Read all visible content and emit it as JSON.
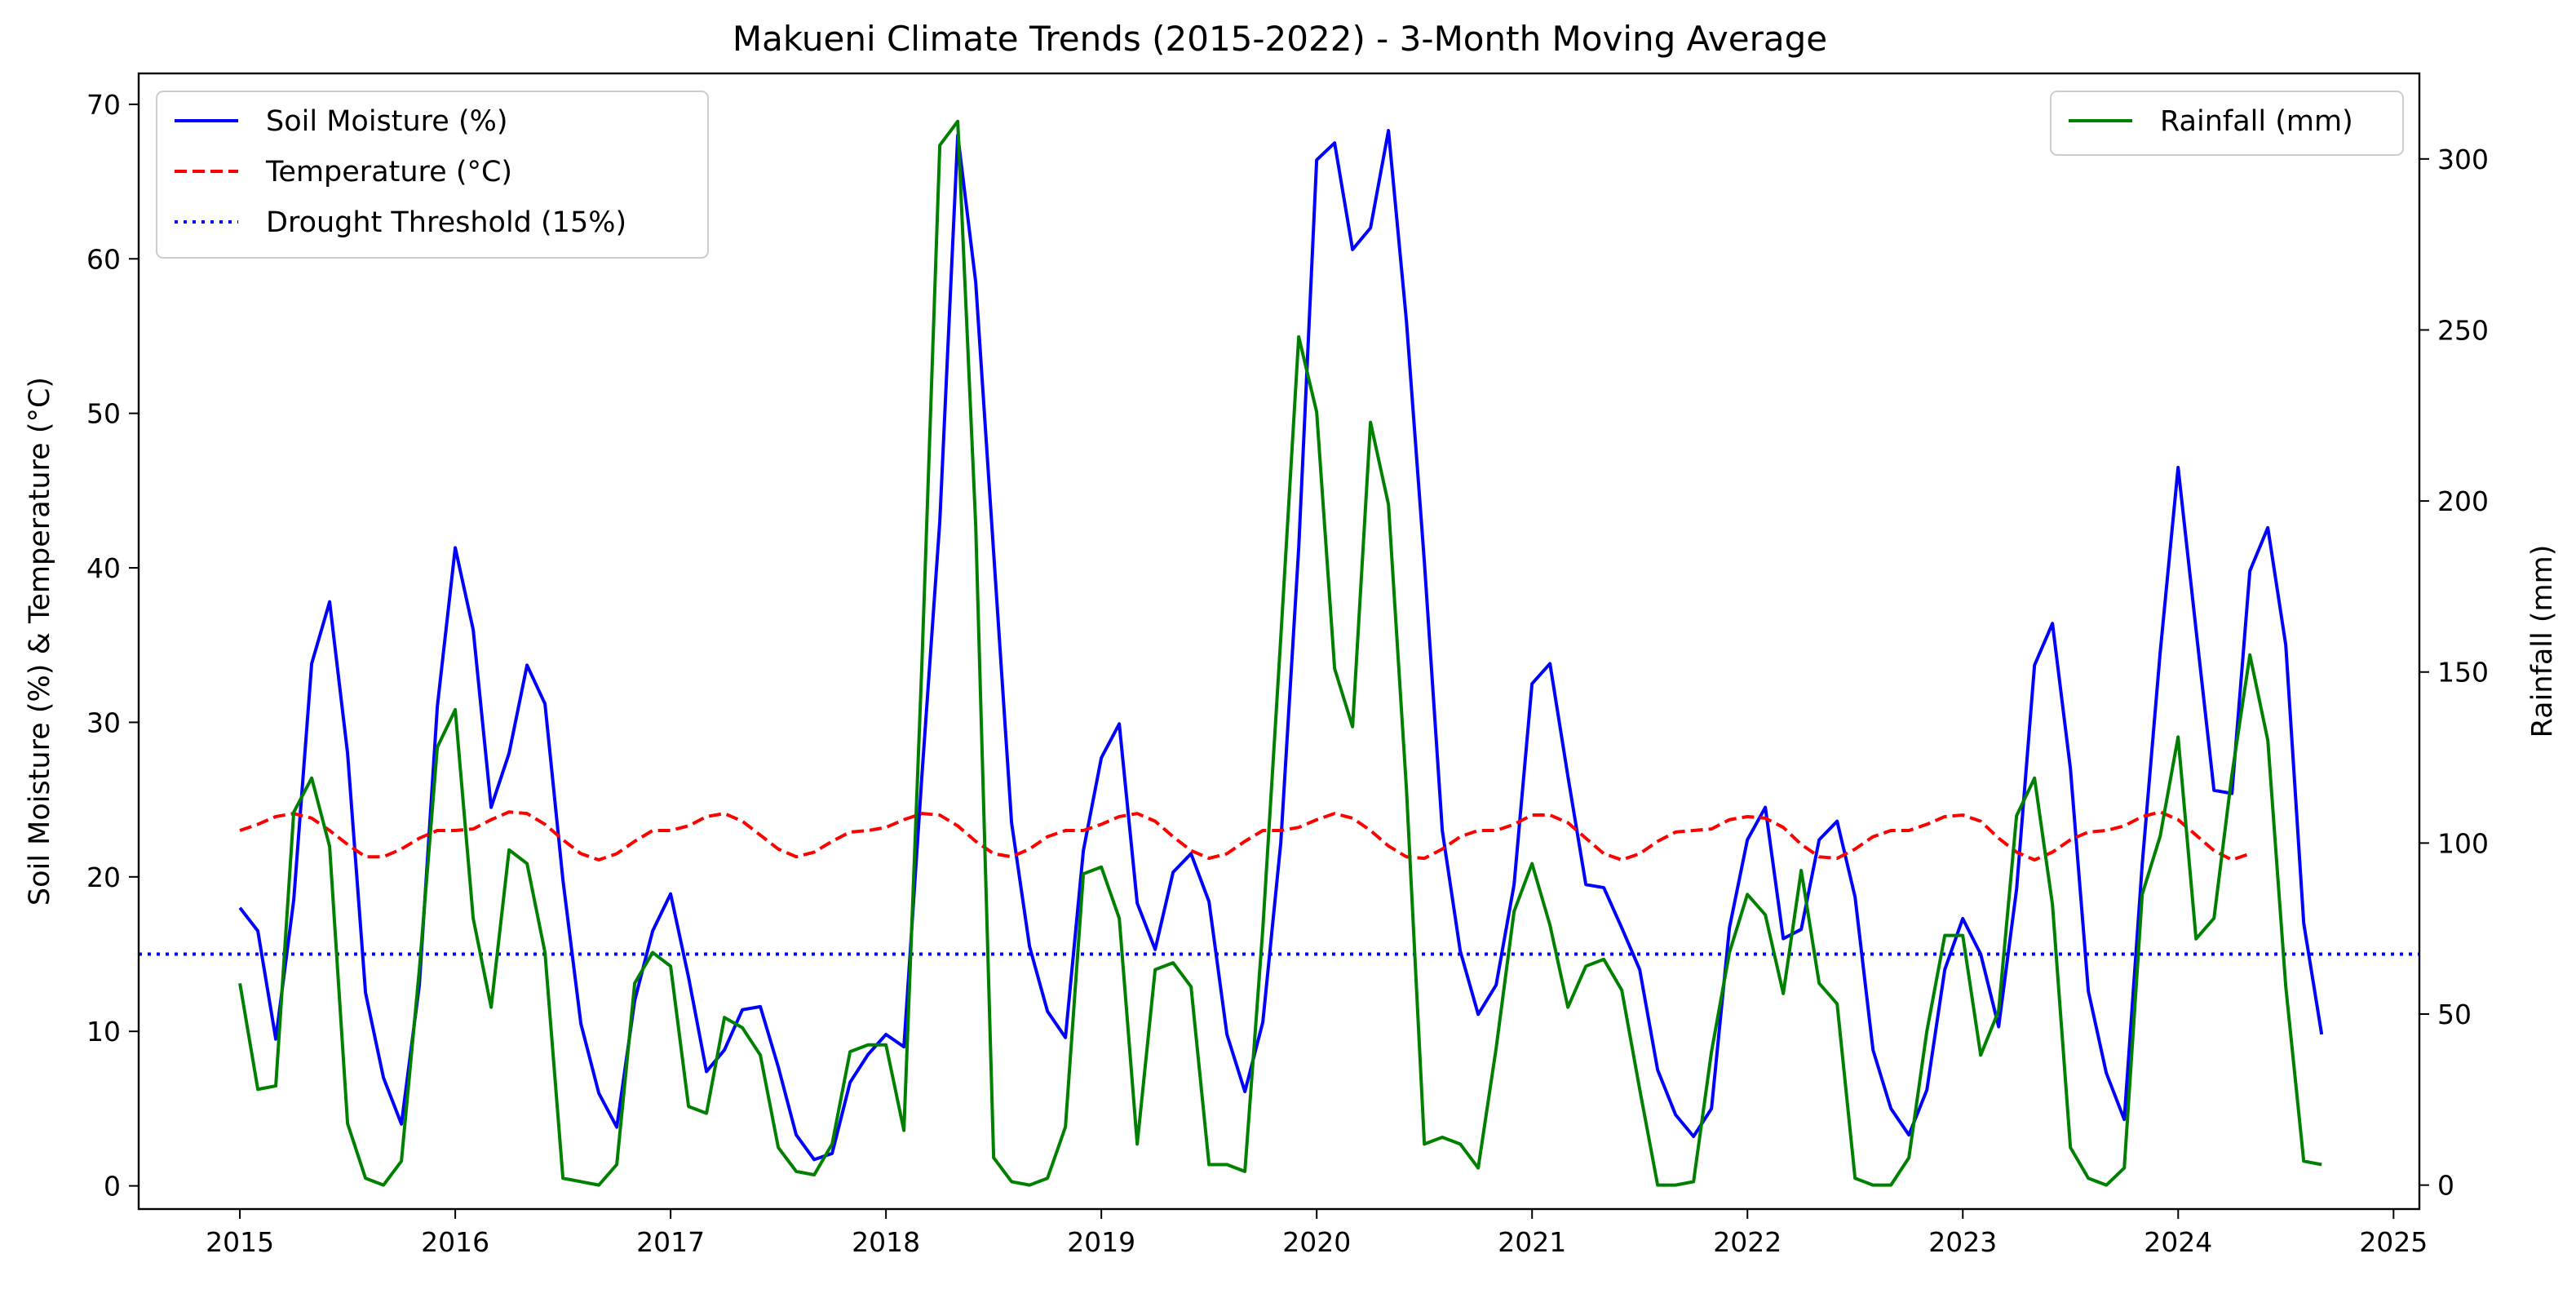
{
  "chart_data": {
    "type": "line",
    "title": "Makueni Climate Trends (2015-2022) - 3-Month Moving Average",
    "xlabel": "",
    "ylabel_left": "Soil Moisture (%) & Temperature (°C)",
    "ylabel_right": "Rainfall (mm)",
    "xlim": [
      2014.53,
      2025.12
    ],
    "ylim_left": [
      -1.5,
      72
    ],
    "ylim_right": [
      -7,
      325
    ],
    "x_ticks": [
      2015,
      2016,
      2017,
      2018,
      2019,
      2020,
      2021,
      2022,
      2023,
      2024,
      2025
    ],
    "x_tick_labels": [
      "2015",
      "2016",
      "2017",
      "2018",
      "2019",
      "2020",
      "2021",
      "2022",
      "2023",
      "2024",
      "2025"
    ],
    "y_left_ticks": [
      0,
      10,
      20,
      30,
      40,
      50,
      60,
      70
    ],
    "y_left_tick_labels": [
      "0",
      "10",
      "20",
      "30",
      "40",
      "50",
      "60",
      "70"
    ],
    "y_right_ticks": [
      0,
      50,
      100,
      150,
      200,
      250,
      300
    ],
    "y_right_tick_labels": [
      "0",
      "50",
      "100",
      "150",
      "200",
      "250",
      "300"
    ],
    "grid": false,
    "x_start": 2015.0,
    "x_step": 0.08333,
    "series": [
      {
        "name": "Soil Moisture (%)",
        "axis": "left",
        "color": "#0000ff",
        "style": "solid",
        "values": [
          18,
          16.5,
          9.5,
          18.5,
          33.8,
          37.8,
          28,
          12.5,
          7,
          4,
          13,
          31,
          41.3,
          36,
          24.5,
          28,
          33.7,
          31.2,
          19.8,
          10.5,
          6,
          3.8,
          12,
          16.5,
          18.9,
          13.5,
          7.4,
          8.8,
          11.4,
          11.6,
          7.7,
          3.3,
          1.7,
          2.1,
          6.7,
          8.5,
          9.8,
          9,
          26.5,
          43,
          68,
          58.5,
          41,
          23.5,
          15.5,
          11.3,
          9.6,
          21.7,
          27.7,
          29.9,
          18.3,
          15.3,
          20.3,
          21.5,
          18.4,
          9.8,
          6.1,
          10.6,
          22.2,
          41.3,
          66.4,
          67.5,
          60.6,
          62,
          68.3,
          56,
          40.4,
          23,
          15.2,
          11.1,
          13,
          19.5,
          32.5,
          33.8,
          26.5,
          19.5,
          19.3,
          16.7,
          14,
          7.5,
          4.6,
          3.2,
          5,
          16.7,
          22.4,
          24.5,
          16,
          16.6,
          22.4,
          23.6,
          18.7,
          8.8,
          5,
          3.3,
          6.2,
          14,
          17.3,
          15,
          10.3,
          19.2,
          33.7,
          36.4,
          27,
          12.6,
          7.3,
          4.3,
          20.8,
          34.5,
          46.5,
          36,
          25.6,
          25.4,
          39.8,
          42.6,
          35,
          17,
          9.8
        ]
      },
      {
        "name": "Temperature (°C)",
        "axis": "left",
        "color": "#ff0000",
        "style": "dashed",
        "values": [
          23,
          23.4,
          23.9,
          24.1,
          23.8,
          23,
          22.1,
          21.3,
          21.3,
          21.8,
          22.5,
          23,
          23,
          23.1,
          23.7,
          24.2,
          24.1,
          23.4,
          22.4,
          21.5,
          21.1,
          21.5,
          22.3,
          23,
          23,
          23.3,
          23.9,
          24.1,
          23.6,
          22.7,
          21.8,
          21.3,
          21.6,
          22.3,
          22.9,
          23,
          23.2,
          23.7,
          24.1,
          24,
          23.3,
          22.3,
          21.5,
          21.3,
          21.8,
          22.6,
          23,
          23,
          23.4,
          23.9,
          24.1,
          23.6,
          22.6,
          21.7,
          21.2,
          21.5,
          22.3,
          23,
          23,
          23.2,
          23.7,
          24.1,
          23.8,
          23,
          22,
          21.3,
          21.2,
          21.8,
          22.6,
          23,
          23,
          23.4,
          24,
          24,
          23.5,
          22.5,
          21.5,
          21.1,
          21.5,
          22.3,
          22.9,
          23,
          23.1,
          23.7,
          23.9,
          23.8,
          23.2,
          22.1,
          21.3,
          21.2,
          21.8,
          22.6,
          23,
          23,
          23.4,
          23.9,
          24,
          23.6,
          22.5,
          21.6,
          21.1,
          21.6,
          22.4,
          22.9,
          23,
          23.3,
          23.9,
          24.2,
          23.7,
          22.7,
          21.7,
          21.1,
          21.5
        ]
      },
      {
        "name": "Drought Threshold (15%)",
        "axis": "left",
        "color": "#0000ff",
        "style": "dotted",
        "constant": 15
      },
      {
        "name": "Rainfall (mm)",
        "axis": "right",
        "color": "#008000",
        "style": "solid",
        "values": [
          59,
          28,
          29,
          109,
          119,
          99,
          18,
          2,
          0,
          7,
          63,
          128,
          139,
          78,
          52,
          98,
          94,
          68,
          2,
          1,
          0,
          6,
          59,
          68,
          64,
          23,
          21,
          49,
          46,
          38,
          11,
          4,
          3,
          12,
          39,
          41,
          41,
          16,
          152,
          304,
          311,
          193,
          8,
          1,
          0,
          2,
          17,
          91,
          93,
          78,
          12,
          63,
          65,
          58,
          6,
          6,
          4,
          75,
          160,
          248,
          226,
          151,
          134,
          223,
          199,
          116,
          12,
          14,
          12,
          5,
          40,
          80,
          94,
          76,
          52,
          64,
          66,
          57,
          28,
          0,
          0,
          1,
          39,
          68,
          85,
          79,
          56,
          92,
          59,
          53,
          2,
          0,
          0,
          8,
          45,
          73,
          73,
          38,
          51,
          108,
          119,
          82,
          11,
          2,
          0,
          5,
          85,
          102,
          131,
          72,
          78,
          120,
          155,
          130,
          58,
          7,
          6
        ]
      }
    ],
    "legends": [
      {
        "position": "upper-left",
        "entries": [
          "Soil Moisture (%)",
          "Temperature (°C)",
          "Drought Threshold (15%)"
        ]
      },
      {
        "position": "upper-right",
        "entries": [
          "Rainfall (mm)"
        ]
      }
    ]
  }
}
